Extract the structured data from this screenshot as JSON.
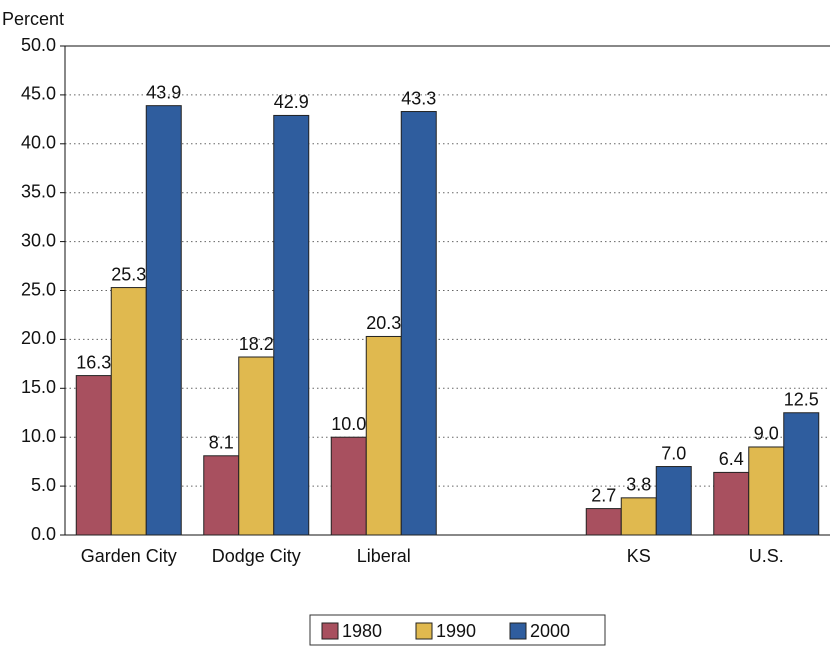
{
  "chart_data": {
    "type": "bar",
    "y_label": "Percent",
    "categories": [
      "Garden City",
      "Dodge City",
      "Liberal",
      null,
      "KS",
      "U.S."
    ],
    "series": [
      {
        "name": "1980",
        "color": "#a8505f",
        "values": [
          16.3,
          8.1,
          10.0,
          null,
          2.7,
          6.4
        ],
        "value_labels": [
          "16.3",
          "8.1",
          "10.0",
          null,
          "2.7",
          "6.4"
        ]
      },
      {
        "name": "1990",
        "color": "#e0b94f",
        "values": [
          25.3,
          18.2,
          20.3,
          null,
          3.8,
          9.0
        ],
        "value_labels": [
          "25.3",
          "18.2",
          "20.3",
          null,
          "3.8",
          "9.0"
        ]
      },
      {
        "name": "2000",
        "color": "#2f5d9e",
        "values": [
          43.9,
          42.9,
          43.3,
          null,
          7.0,
          12.5
        ],
        "value_labels": [
          "43.9",
          "42.9",
          "43.3",
          null,
          "7.0",
          "12.5"
        ]
      }
    ],
    "ylim": [
      0,
      50
    ],
    "yticks": [
      {
        "value": 0,
        "label": "0.0"
      },
      {
        "value": 5,
        "label": "5.0"
      },
      {
        "value": 10,
        "label": "10.0"
      },
      {
        "value": 15,
        "label": "15.0"
      },
      {
        "value": 20,
        "label": "20.0"
      },
      {
        "value": 25,
        "label": "25.0"
      },
      {
        "value": 30,
        "label": "30.0"
      },
      {
        "value": 35,
        "label": "35.0"
      },
      {
        "value": 40,
        "label": "40.0"
      },
      {
        "value": 45,
        "label": "45.0"
      },
      {
        "value": 50,
        "label": "50.0"
      }
    ],
    "grid": true,
    "legend": "bottom"
  }
}
